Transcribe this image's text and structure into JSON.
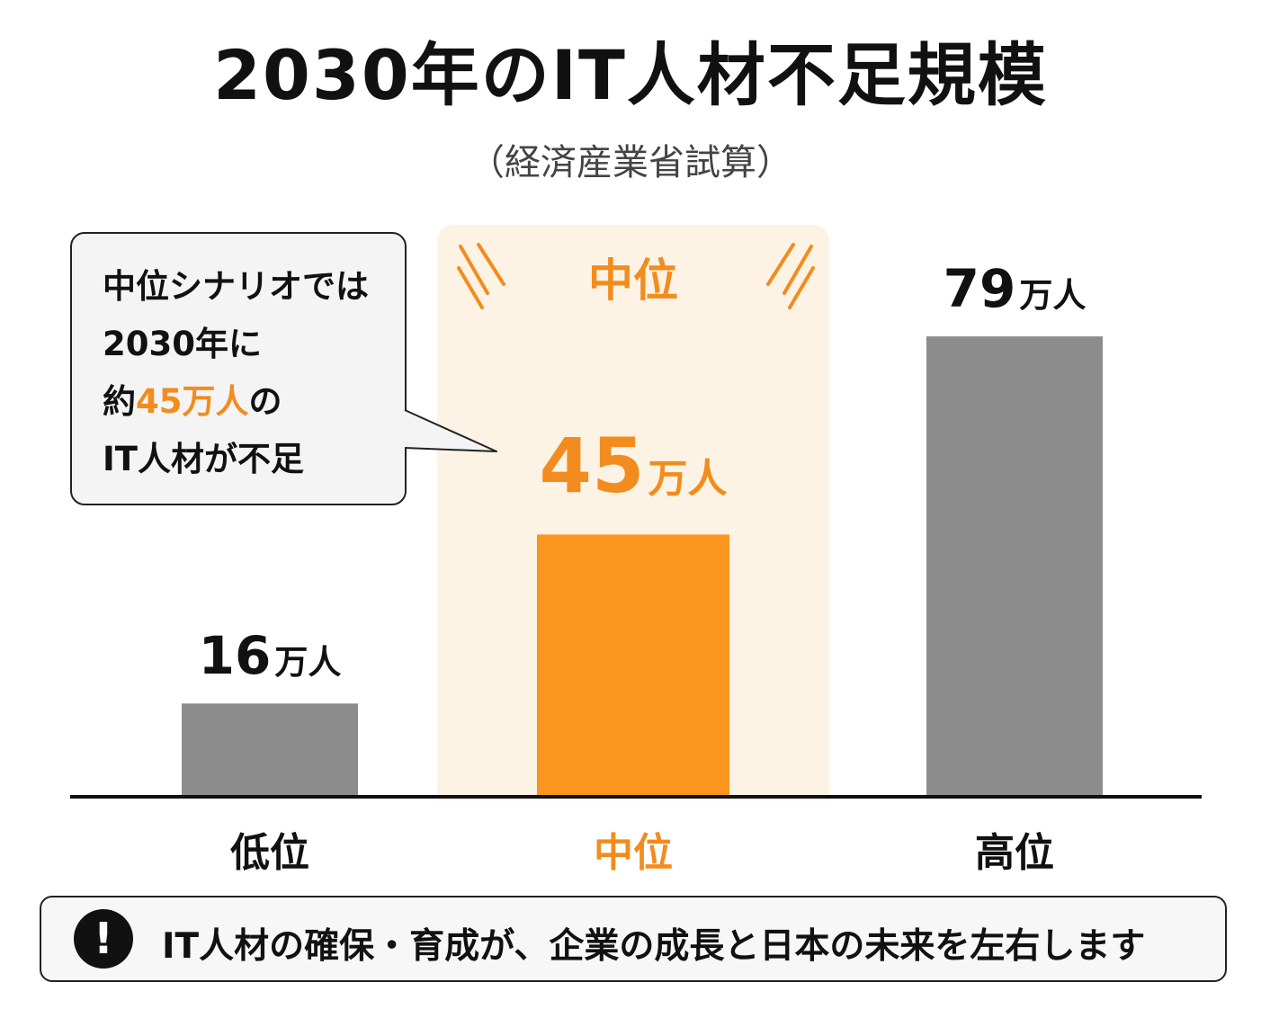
{
  "title": "2030年のIT人材不足規模",
  "subtitle": "（経済産業省試算）",
  "callout": {
    "line1": "中位シナリオでは",
    "line2": "2030年に",
    "line3_prefix": "約",
    "line3_highlight": "45万人",
    "line3_suffix": "の",
    "line4": "IT人材が不足"
  },
  "highlight_header": "中位",
  "notice": {
    "icon": "exclamation-icon",
    "text": "IT人材の確保・育成が、企業の成長と日本の未来を左右します"
  },
  "colors": {
    "accent": "#f28c1e",
    "bar_default": "#8c8c8c",
    "bar_highlight": "#fa961e",
    "highlight_bg": "#fdf3e4"
  },
  "chart_data": {
    "type": "bar",
    "title": "2030年のIT人材不足規模",
    "subtitle": "（経済産業省試算）",
    "categories": [
      "低位",
      "中位",
      "高位"
    ],
    "values": [
      16,
      45,
      79
    ],
    "unit": "万人",
    "value_labels": [
      "16",
      "45",
      "79"
    ],
    "highlight_index": 1,
    "ylim": [
      0,
      100
    ],
    "grid": false,
    "legend": "none"
  }
}
